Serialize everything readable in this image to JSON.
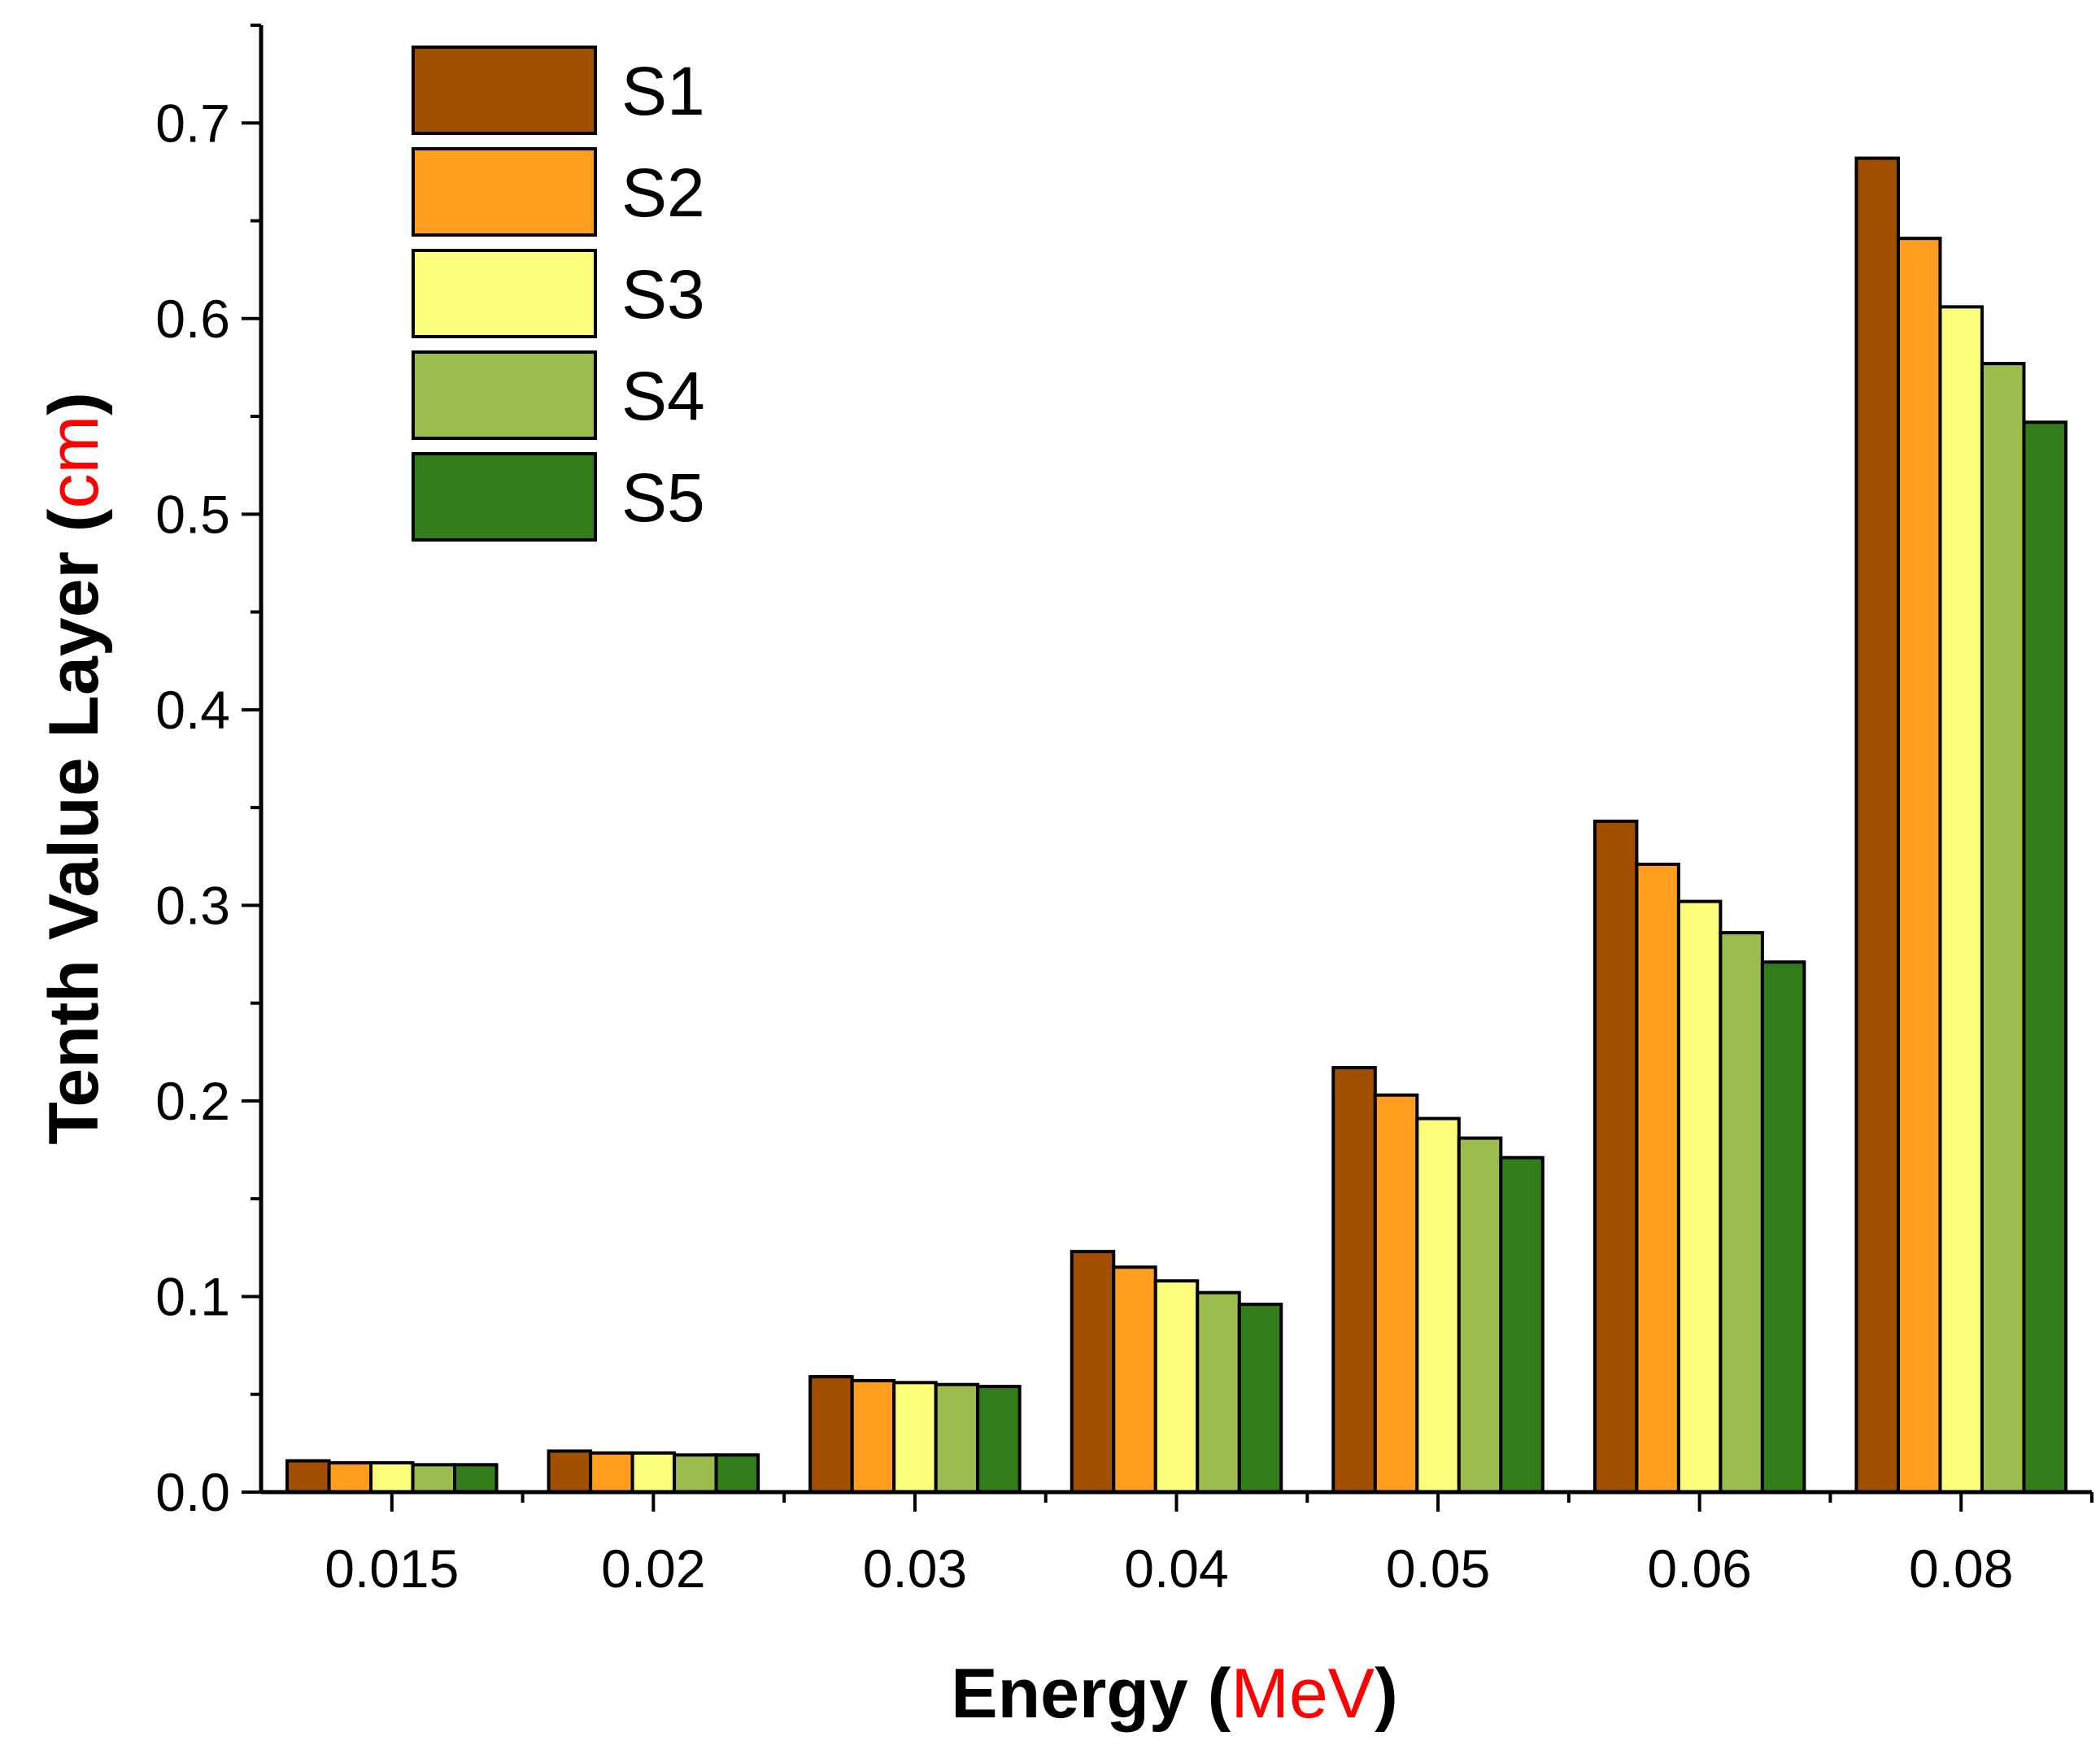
{
  "chart_data": {
    "type": "bar",
    "title": "",
    "xlabel": "Energy",
    "xlabel_unit": "MeV",
    "ylabel": "Tenth Value Layer",
    "ylabel_unit": "cm",
    "ylim": [
      0,
      0.75
    ],
    "yticks": [
      "0.0",
      "0.1",
      "0.2",
      "0.3",
      "0.4",
      "0.5",
      "0.6",
      "0.7"
    ],
    "ytick_values": [
      0,
      0.1,
      0.2,
      0.3,
      0.4,
      0.5,
      0.6,
      0.7
    ],
    "categories": [
      "0.015",
      "0.02",
      "0.03",
      "0.04",
      "0.05",
      "0.06",
      "0.08"
    ],
    "grid": false,
    "legend_position": "top-left",
    "series": [
      {
        "name": "S1",
        "color": "#a24f00",
        "values": [
          0.016,
          0.021,
          0.059,
          0.123,
          0.217,
          0.343,
          0.682
        ]
      },
      {
        "name": "S2",
        "color": "#ff9e1e",
        "values": [
          0.015,
          0.02,
          0.057,
          0.115,
          0.203,
          0.321,
          0.641
        ]
      },
      {
        "name": "S3",
        "color": "#fdfd7c",
        "values": [
          0.015,
          0.02,
          0.056,
          0.108,
          0.191,
          0.302,
          0.606
        ]
      },
      {
        "name": "S4",
        "color": "#9cbc4d",
        "values": [
          0.014,
          0.019,
          0.055,
          0.102,
          0.181,
          0.286,
          0.577
        ]
      },
      {
        "name": "S5",
        "color": "#327d1a",
        "values": [
          0.014,
          0.019,
          0.054,
          0.096,
          0.171,
          0.271,
          0.547
        ]
      }
    ]
  }
}
